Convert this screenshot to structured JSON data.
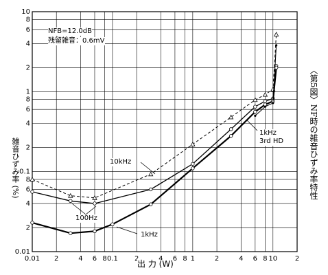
{
  "chart_data": {
    "type": "line",
    "x_label": "出 力 (W)",
    "y_label": "雑音ひずみ率 (%)",
    "caption": "〈第5図〉NF時の雑音ひずみ率特性",
    "annotations": [
      "NFB=12.0dB",
      "残留雑音：0.6mV"
    ],
    "log_x": true,
    "log_y": true,
    "grid": true,
    "xlim": [
      0.01,
      20
    ],
    "ylim": [
      0.01,
      10
    ],
    "xticks": [
      0.01,
      {
        "value": 0.02,
        "label": "2"
      },
      {
        "value": 0.04,
        "label": "4"
      },
      {
        "value": 0.06,
        "label": "6"
      },
      {
        "value": 0.08,
        "label": "8"
      },
      0.1,
      {
        "value": 0.2,
        "label": "2"
      },
      {
        "value": 0.4,
        "label": "4"
      },
      {
        "value": 0.6,
        "label": "6"
      },
      {
        "value": 0.8,
        "label": "8"
      },
      1,
      2,
      4,
      6,
      8,
      10,
      {
        "value": 20,
        "label": "2"
      }
    ],
    "yticks": [
      10,
      {
        "value": 8,
        "label": "8"
      },
      {
        "value": 6,
        "label": "6"
      },
      {
        "value": 4,
        "label": "4"
      },
      {
        "value": 2,
        "label": "2"
      },
      1,
      {
        "value": 0.8,
        "label": "8"
      },
      {
        "value": 0.6,
        "label": "6"
      },
      {
        "value": 0.4,
        "label": "4"
      },
      {
        "value": 0.2,
        "label": "2"
      },
      0.1,
      {
        "value": 0.08,
        "label": "8"
      },
      {
        "value": 0.06,
        "label": "6"
      },
      {
        "value": 0.04,
        "label": "4"
      },
      {
        "value": 0.02,
        "label": "2"
      },
      0.01
    ],
    "series": [
      {
        "name": "10kHz",
        "color": "#000000",
        "dash": true,
        "width": 1,
        "marker": "triangle",
        "x": [
          0.01,
          0.03,
          0.06,
          0.3,
          1,
          3,
          6,
          8,
          10,
          11
        ],
        "values": [
          0.08,
          0.05,
          0.047,
          0.093,
          0.22,
          0.48,
          0.79,
          0.92,
          1.07,
          5.2
        ]
      },
      {
        "name": "100Hz",
        "color": "#000000",
        "dash": false,
        "width": 1.3,
        "marker": "circle",
        "x": [
          0.01,
          0.03,
          0.06,
          0.3,
          1,
          3,
          6,
          8,
          10,
          11
        ],
        "values": [
          0.056,
          0.043,
          0.04,
          0.06,
          0.125,
          0.34,
          0.65,
          0.76,
          0.82,
          2.1
        ]
      },
      {
        "name": "1kHz",
        "color": "#000000",
        "dash": false,
        "width": 2.2,
        "marker": "circle",
        "x": [
          0.01,
          0.03,
          0.06,
          0.1,
          0.3,
          1,
          3,
          6,
          8,
          10,
          11
        ],
        "values": [
          0.023,
          0.017,
          0.018,
          0.022,
          0.039,
          0.11,
          0.28,
          0.56,
          0.69,
          0.76,
          2.0
        ]
      },
      {
        "name": "1kHz 3rd HD",
        "color": "#000000",
        "dash": false,
        "width": 1,
        "marker": "dot",
        "x": [
          6,
          8,
          10,
          11
        ],
        "values": [
          0.5,
          0.65,
          0.72,
          3.8
        ]
      }
    ]
  }
}
